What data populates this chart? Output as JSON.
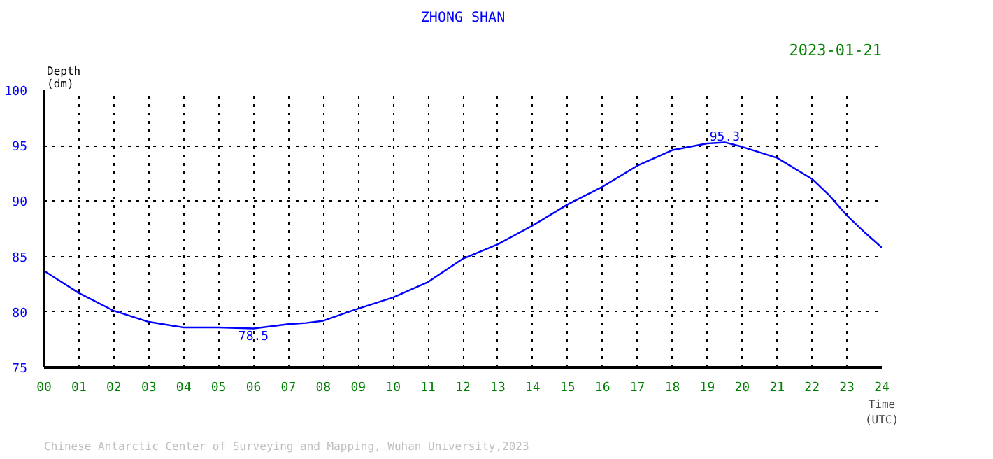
{
  "chart_data": {
    "type": "line",
    "title": "ZHONG SHAN",
    "subtitle": "2023-01-21",
    "xlabel": "Time\n(UTC)",
    "ylabel": "Depth\n(dm)",
    "x": [
      0,
      0.5,
      1,
      2,
      3,
      4,
      5,
      6,
      7,
      7.5,
      8,
      9,
      10,
      11,
      12,
      13,
      14,
      15,
      16,
      17,
      18,
      19,
      19.5,
      20,
      21,
      22,
      22.5,
      23,
      23.5,
      24
    ],
    "series": [
      {
        "color": "#0000ff",
        "values": [
          83.7,
          82.7,
          81.7,
          80.1,
          79.1,
          78.6,
          78.6,
          78.5,
          78.9,
          79.0,
          79.2,
          80.3,
          81.3,
          82.7,
          84.8,
          86.1,
          87.8,
          89.7,
          91.3,
          93.2,
          94.6,
          95.2,
          95.3,
          94.9,
          93.9,
          92.0,
          90.5,
          88.7,
          87.2,
          85.8
        ]
      }
    ],
    "xlim": [
      0,
      24
    ],
    "ylim": [
      75,
      100
    ],
    "xticks": [
      {
        "value": 0,
        "label": "00"
      },
      {
        "value": 1,
        "label": "01"
      },
      {
        "value": 2,
        "label": "02"
      },
      {
        "value": 3,
        "label": "03"
      },
      {
        "value": 4,
        "label": "04"
      },
      {
        "value": 5,
        "label": "05"
      },
      {
        "value": 6,
        "label": "06"
      },
      {
        "value": 7,
        "label": "07"
      },
      {
        "value": 8,
        "label": "08"
      },
      {
        "value": 9,
        "label": "09"
      },
      10,
      11,
      12,
      13,
      14,
      15,
      16,
      17,
      18,
      19,
      20,
      21,
      22,
      23,
      24
    ],
    "yticks": [
      75,
      80,
      85,
      90,
      95,
      100
    ],
    "grid": true,
    "marker": "none",
    "line_style": "solid",
    "annotations": [
      {
        "text": "78.5",
        "x": 6,
        "y": 78.5
      },
      {
        "text": "95.3",
        "x": 19.5,
        "y": 95.3
      },
      "Chinese Antarctic Center of Surveying and Mapping, Wuhan University,2023"
    ]
  }
}
